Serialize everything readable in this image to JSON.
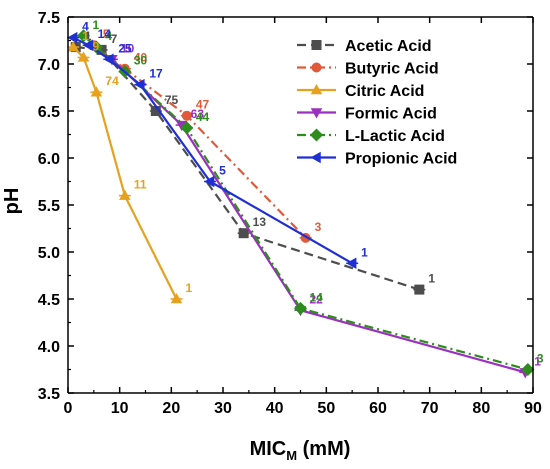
{
  "chart_data": {
    "type": "line",
    "xlabel": "MIC",
    "xlabel_sub": "M",
    "xlabel_unit": " (mM)",
    "ylabel": "pH",
    "xlim": [
      0,
      90
    ],
    "ylim": [
      3.5,
      7.5
    ],
    "xticks": [
      0,
      10,
      20,
      30,
      40,
      50,
      60,
      70,
      80,
      90
    ],
    "yticks": [
      3.5,
      4.0,
      4.5,
      5.0,
      5.5,
      6.0,
      6.5,
      7.0,
      7.5
    ],
    "xtick_labels": [
      "0",
      "10",
      "20",
      "30",
      "40",
      "50",
      "60",
      "70",
      "80",
      "90"
    ],
    "ytick_labels": [
      "3.5",
      "4.0",
      "4.5",
      "5.0",
      "5.5",
      "6.0",
      "6.5",
      "7.0",
      "7.5"
    ],
    "grid": false,
    "legend_position": "top-right",
    "series": [
      {
        "name": "Acetic Acid",
        "color": "#4d4d4d",
        "dash": "dashed",
        "marker": "square",
        "points": [
          {
            "x": 1.5,
            "y": 7.18,
            "label": "1"
          },
          {
            "x": 6.5,
            "y": 7.15,
            "label": "7"
          },
          {
            "x": 17,
            "y": 6.5,
            "label": "75"
          },
          {
            "x": 34,
            "y": 5.2,
            "label": "13"
          },
          {
            "x": 68,
            "y": 4.6,
            "label": "1"
          }
        ]
      },
      {
        "name": "Butyric Acid",
        "color": "#e05a3a",
        "dash": "dashdot",
        "marker": "circle",
        "points": [
          {
            "x": 5,
            "y": 7.2,
            "label": "5"
          },
          {
            "x": 11,
            "y": 6.95,
            "label": "40"
          },
          {
            "x": 23,
            "y": 6.45,
            "label": "47"
          },
          {
            "x": 46,
            "y": 5.15,
            "label": "3"
          }
        ]
      },
      {
        "name": "Citric Acid",
        "color": "#e6a11e",
        "dash": "solid",
        "marker": "triangle-up",
        "points": [
          {
            "x": 1,
            "y": 7.18,
            "label": "1"
          },
          {
            "x": 3,
            "y": 7.07,
            "label": "9"
          },
          {
            "x": 5.5,
            "y": 6.7,
            "label": "74"
          },
          {
            "x": 11,
            "y": 5.6,
            "label": "11"
          },
          {
            "x": 21,
            "y": 4.5,
            "label": "1"
          }
        ]
      },
      {
        "name": "Formic Acid",
        "color": "#9b2fbf",
        "dash": "solid",
        "marker": "triangle-down",
        "points": [
          {
            "x": 8.5,
            "y": 7.05,
            "label": "10"
          },
          {
            "x": 22,
            "y": 6.35,
            "label": "63"
          },
          {
            "x": 45,
            "y": 4.38,
            "label": "22"
          },
          {
            "x": 88.5,
            "y": 3.72,
            "label": "1"
          }
        ]
      },
      {
        "name": "L-Lactic Acid",
        "color": "#2e8b1e",
        "dash": "dashdot",
        "marker": "diamond",
        "points": [
          {
            "x": 3,
            "y": 7.3,
            "label": "1"
          },
          {
            "x": 5.5,
            "y": 7.18,
            "label": "4"
          },
          {
            "x": 11,
            "y": 6.92,
            "label": "30"
          },
          {
            "x": 23,
            "y": 6.32,
            "label": "44"
          },
          {
            "x": 45,
            "y": 4.4,
            "label": "14"
          },
          {
            "x": 89,
            "y": 3.75,
            "label": "3"
          }
        ]
      },
      {
        "name": "Propionic Acid",
        "color": "#1f2fd4",
        "dash": "solid",
        "marker": "triangle-left",
        "points": [
          {
            "x": 1,
            "y": 7.28,
            "label": "4"
          },
          {
            "x": 4,
            "y": 7.2,
            "label": "14"
          },
          {
            "x": 8,
            "y": 7.05,
            "label": "25"
          },
          {
            "x": 14,
            "y": 6.78,
            "label": "17"
          },
          {
            "x": 27.5,
            "y": 5.75,
            "label": "5"
          },
          {
            "x": 55,
            "y": 4.88,
            "label": "1"
          }
        ]
      }
    ]
  }
}
